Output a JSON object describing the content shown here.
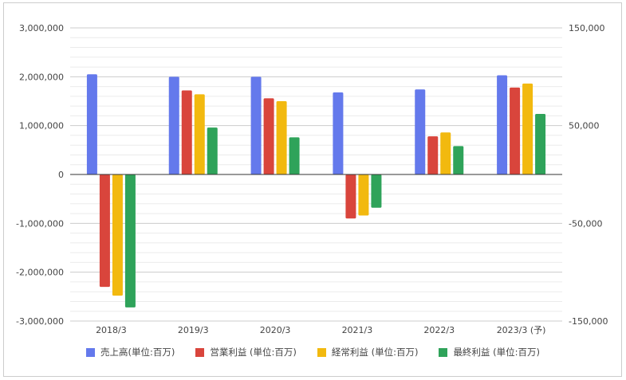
{
  "chart_data": {
    "type": "bar",
    "title": "",
    "categories": [
      "2018/3",
      "2019/3",
      "2020/3",
      "2021/3",
      "2022/3",
      "2023/3 (予)"
    ],
    "left_axis": {
      "ylim": [
        -3000000,
        3000000
      ],
      "ticks": [
        "3,000,000",
        "2,000,000",
        "1,000,000",
        "0",
        "-1,000,000",
        "-2,000,000",
        "-3,000,000"
      ]
    },
    "right_axis": {
      "ylim": [
        -150000,
        150000
      ],
      "ticks": [
        "150,000",
        "50,000",
        "-50,000",
        "-150,000"
      ]
    },
    "grid": true,
    "legend_position": "bottom",
    "series": [
      {
        "name": "売上高(単位:百万)",
        "color": "#6479ec",
        "axis": "left",
        "values": [
          2050000,
          2000000,
          2000000,
          1680000,
          1740000,
          2030000
        ]
      },
      {
        "name": "営業利益 (単位:百万)",
        "color": "#d9453c",
        "axis": "right",
        "values": [
          -115000,
          86000,
          78000,
          -45000,
          39000,
          89000
        ]
      },
      {
        "name": "経常利益 (単位:百万)",
        "color": "#f2b90f",
        "axis": "right",
        "values": [
          -124000,
          82000,
          75000,
          -42000,
          43000,
          93000
        ]
      },
      {
        "name": "最終利益 (単位:百万)",
        "color": "#2fa35a",
        "axis": "right",
        "values": [
          -136000,
          48000,
          38000,
          -34000,
          29000,
          62000
        ]
      }
    ]
  }
}
